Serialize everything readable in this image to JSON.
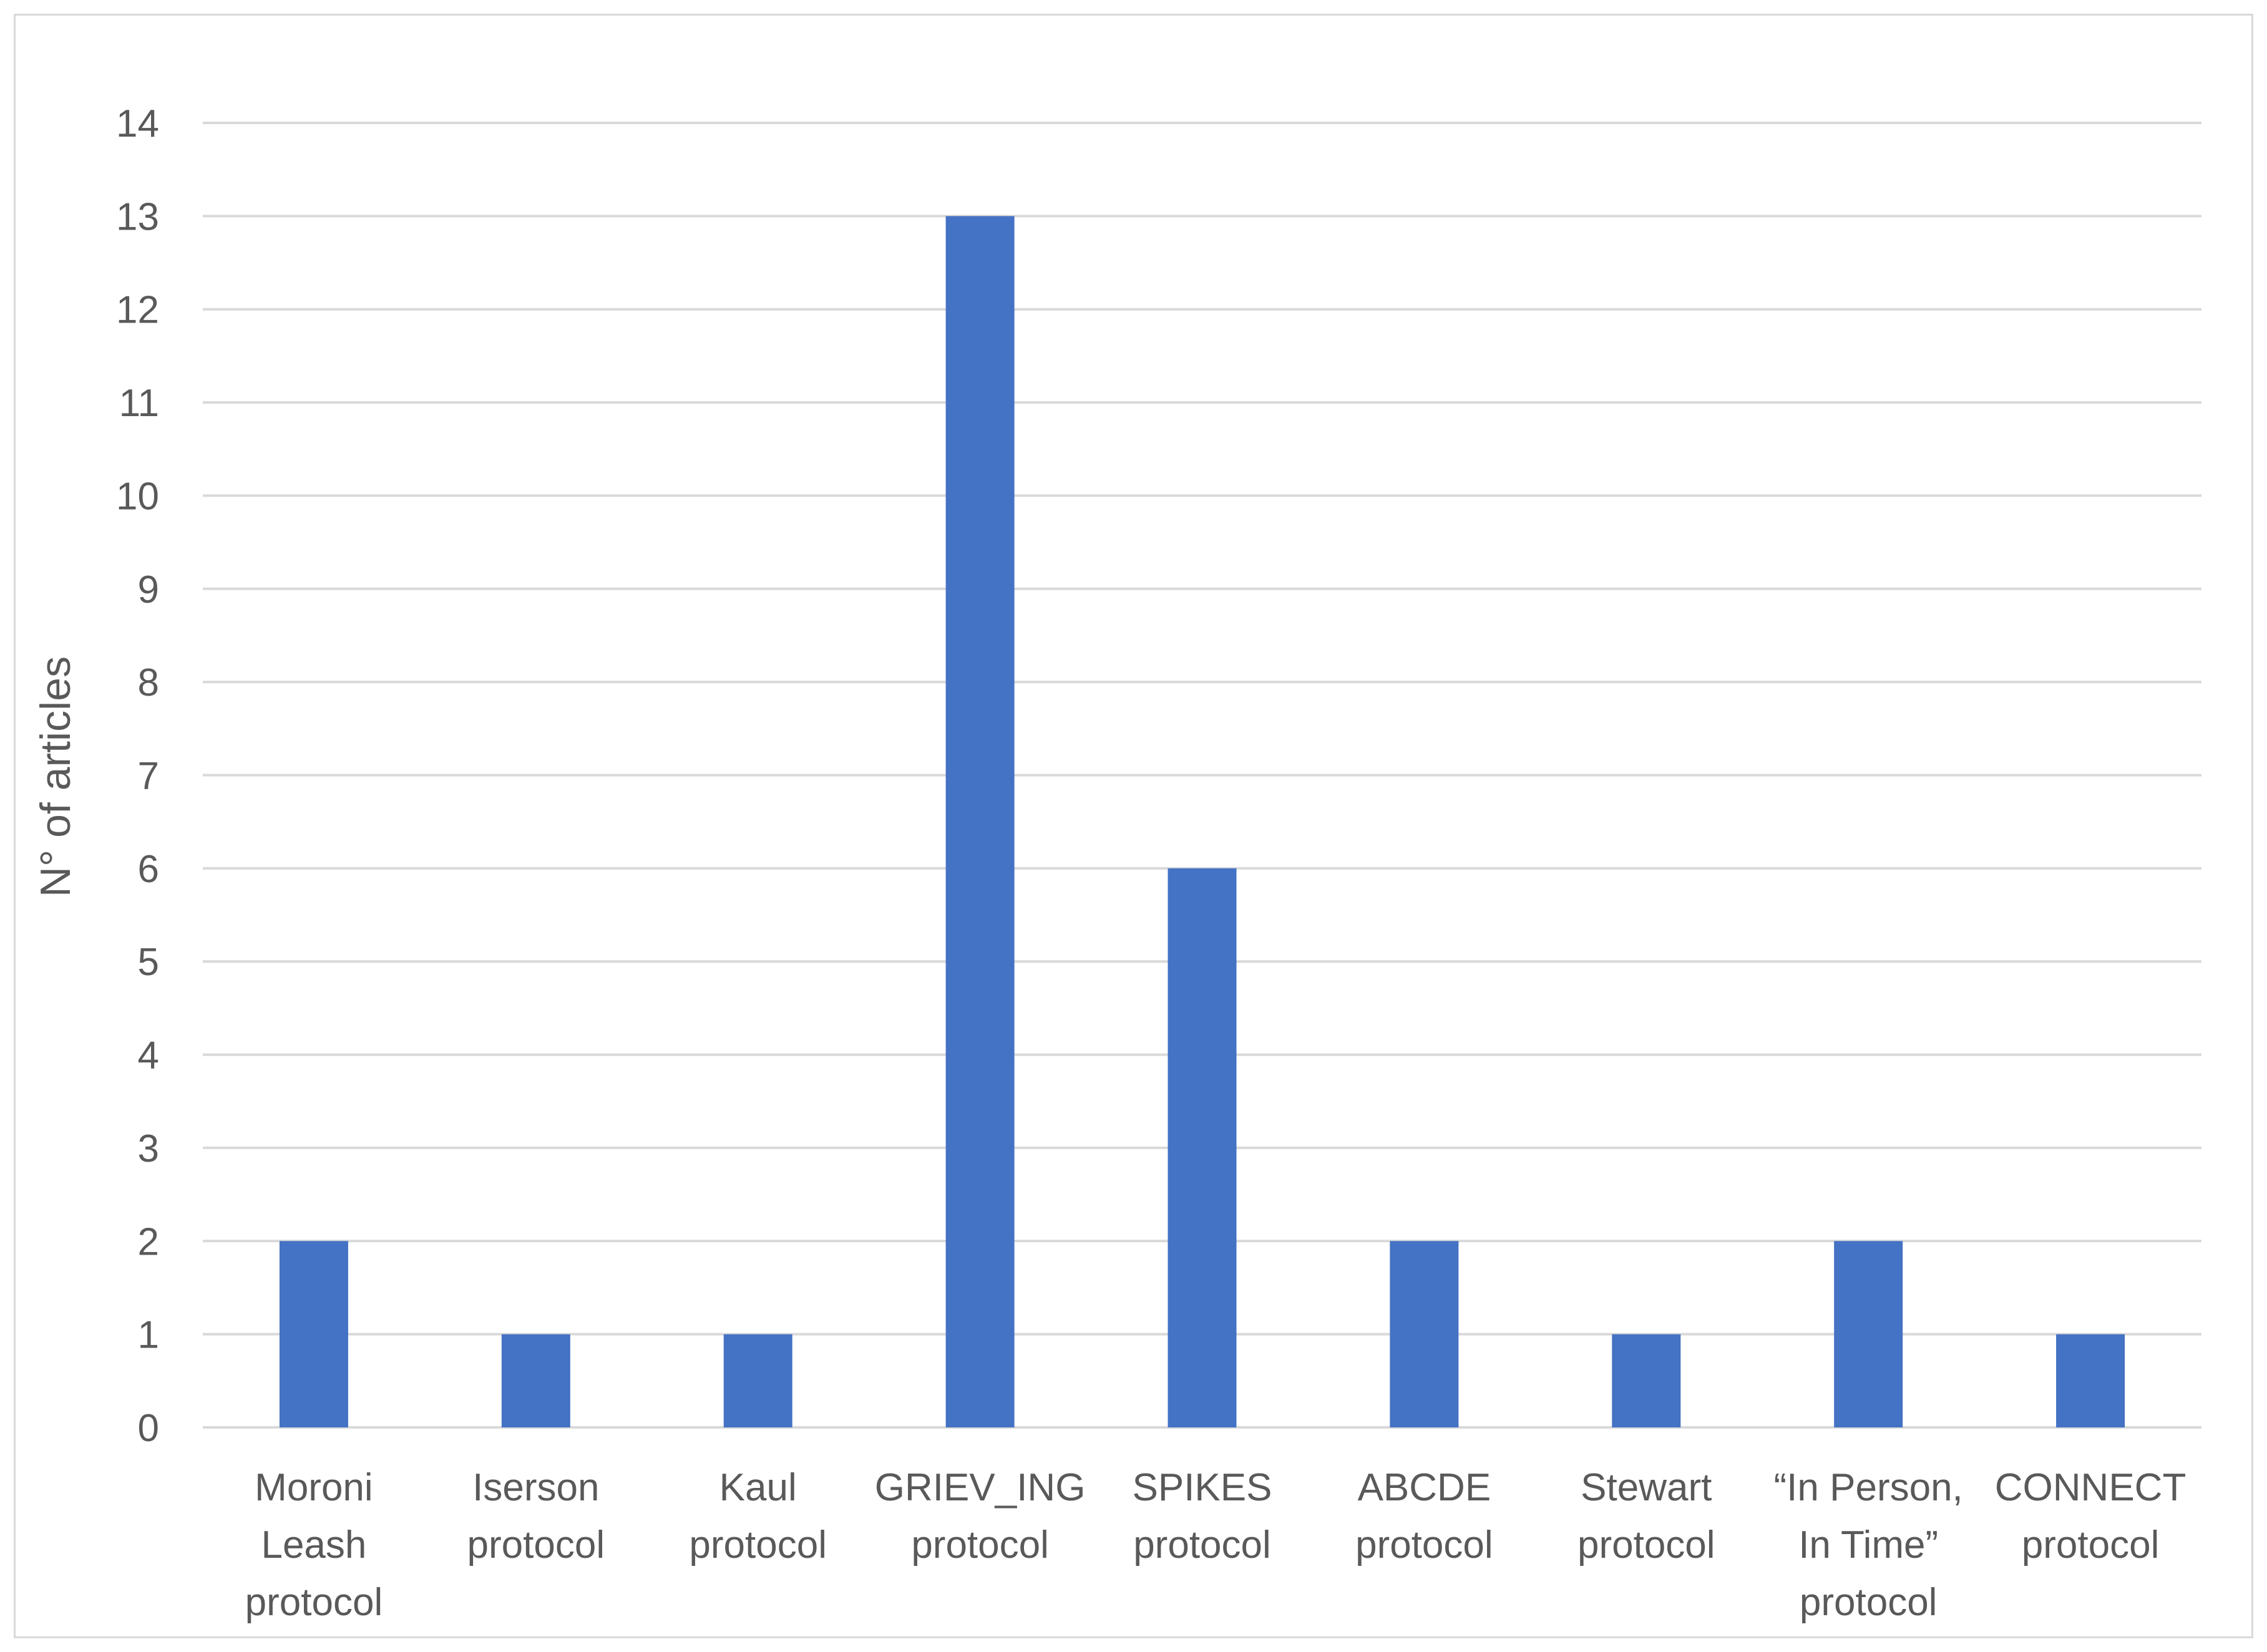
{
  "chart_data": {
    "type": "bar",
    "title": "",
    "xlabel": "",
    "ylabel": "N° of articles",
    "ylim": [
      0,
      14
    ],
    "yticks": [
      0,
      1,
      2,
      3,
      4,
      5,
      6,
      7,
      8,
      9,
      10,
      11,
      12,
      13,
      14
    ],
    "grid": true,
    "legend": "none",
    "bar_color": "#4472c4",
    "categories": [
      [
        "Moroni",
        "Leash",
        "protocol"
      ],
      [
        "Iserson",
        "protocol"
      ],
      [
        "Kaul",
        "protocol"
      ],
      [
        "GRIEV_ING",
        "protocol"
      ],
      [
        "SPIKES",
        "protocol"
      ],
      [
        "ABCDE",
        "protocol"
      ],
      [
        "Stewart",
        "protocol"
      ],
      [
        "“In Person,",
        "In Time”",
        "protocol"
      ],
      [
        "CONNECT",
        "protocol"
      ]
    ],
    "values": [
      2,
      1,
      1,
      13,
      6,
      2,
      1,
      2,
      1
    ]
  }
}
